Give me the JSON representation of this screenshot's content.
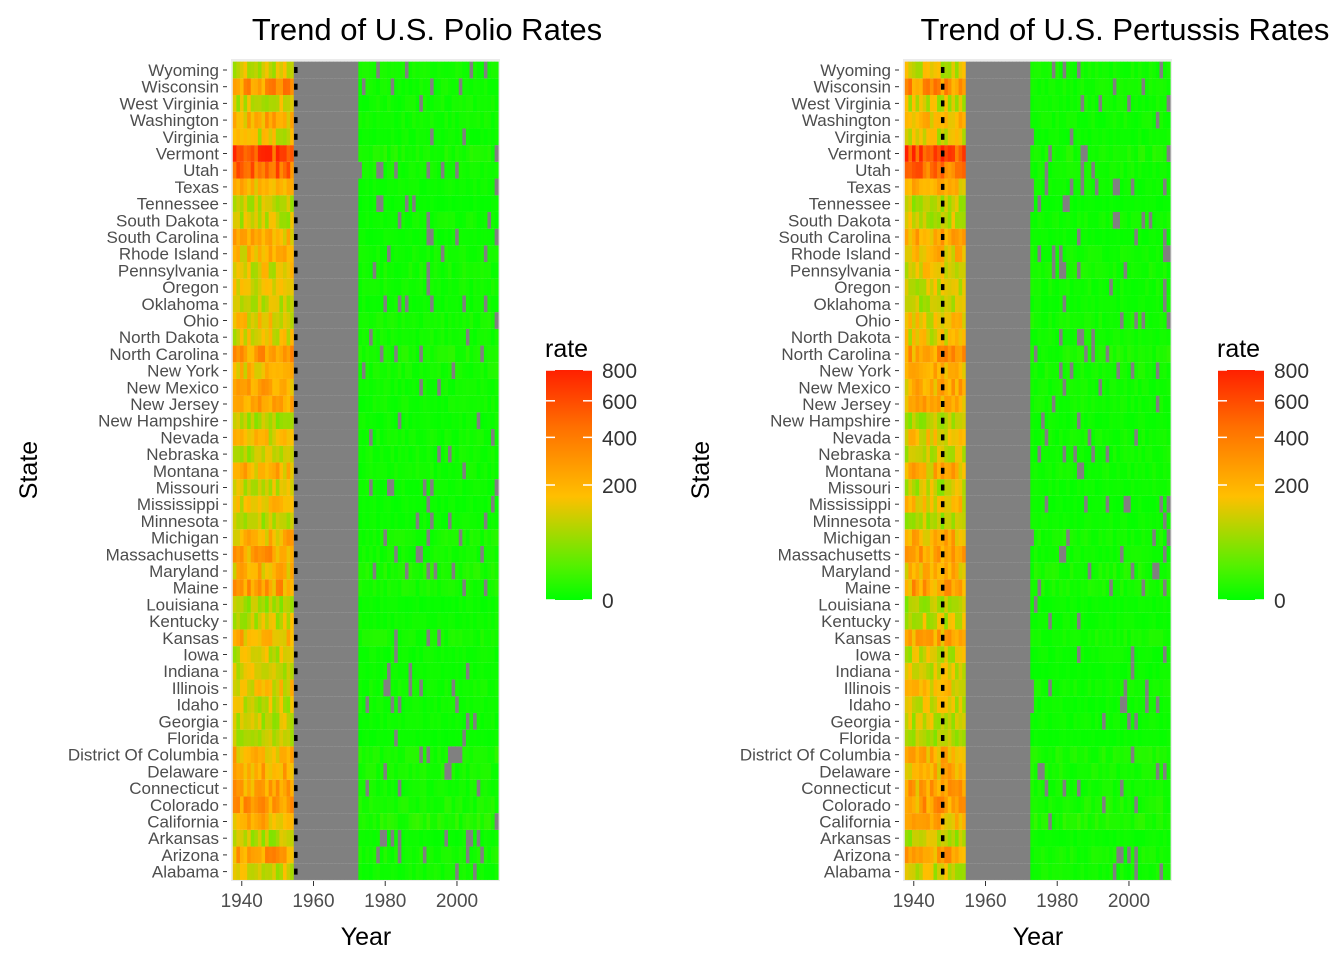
{
  "chart_data": [
    {
      "type": "heatmap",
      "title": "Trend of U.S. Polio Rates",
      "xlabel": "Year",
      "ylabel": "State",
      "x_ticks": [
        1940,
        1960,
        1980,
        2000
      ],
      "xlim": [
        1937,
        2012
      ],
      "missing_years": [
        1955,
        1973
      ],
      "vaccine_line_year": 1955,
      "legend_title": "rate",
      "legend_ticks": [
        0,
        200,
        400,
        600,
        800
      ],
      "rows": [
        "Alabama",
        "Arizona",
        "Arkansas",
        "California",
        "Colorado",
        "Connecticut",
        "Delaware",
        "District Of Columbia",
        "Florida",
        "Georgia",
        "Idaho",
        "Illinois",
        "Indiana",
        "Iowa",
        "Kansas",
        "Kentucky",
        "Louisiana",
        "Maine",
        "Maryland",
        "Massachusetts",
        "Michigan",
        "Minnesota",
        "Mississippi",
        "Missouri",
        "Montana",
        "Nebraska",
        "Nevada",
        "New Hampshire",
        "New Jersey",
        "New Mexico",
        "New York",
        "North Carolina",
        "North Dakota",
        "Ohio",
        "Oklahoma",
        "Oregon",
        "Pennsylvania",
        "Rhode Island",
        "South Carolina",
        "South Dakota",
        "Tennessee",
        "Texas",
        "Utah",
        "Vermont",
        "Virginia",
        "Washington",
        "West Virginia",
        "Wisconsin",
        "Wyoming"
      ],
      "row_levels": [
        150,
        300,
        130,
        250,
        300,
        280,
        260,
        250,
        120,
        140,
        150,
        200,
        160,
        150,
        270,
        150,
        120,
        300,
        240,
        290,
        250,
        130,
        200,
        140,
        250,
        140,
        200,
        120,
        270,
        260,
        240,
        310,
        180,
        200,
        140,
        160,
        180,
        230,
        260,
        150,
        130,
        250,
        500,
        620,
        170,
        260,
        150,
        350,
        160
      ],
      "post_levels": [
        8,
        10,
        5,
        15,
        12,
        8,
        10,
        12,
        4,
        6,
        6,
        8,
        5,
        6,
        10,
        6,
        5,
        10,
        12,
        8,
        10,
        6,
        5,
        6,
        8,
        8,
        8,
        6,
        8,
        8,
        10,
        12,
        8,
        10,
        6,
        8,
        10,
        8,
        5,
        8,
        4,
        6,
        8,
        12,
        6,
        8,
        8,
        8,
        8
      ]
    },
    {
      "type": "heatmap",
      "title": "Trend of U.S. Pertussis Rates",
      "xlabel": "Year",
      "ylabel": "State",
      "x_ticks": [
        1940,
        1960,
        1980,
        2000
      ],
      "xlim": [
        1937,
        2012
      ],
      "missing_years": [
        1955,
        1973
      ],
      "vaccine_line_year": 1948,
      "legend_title": "rate",
      "legend_ticks": [
        0,
        200,
        400,
        600,
        800
      ],
      "rows": [
        "Alabama",
        "Arizona",
        "Arkansas",
        "California",
        "Colorado",
        "Connecticut",
        "Delaware",
        "District Of Columbia",
        "Florida",
        "Georgia",
        "Idaho",
        "Illinois",
        "Indiana",
        "Iowa",
        "Kansas",
        "Kentucky",
        "Louisiana",
        "Maine",
        "Maryland",
        "Massachusetts",
        "Michigan",
        "Minnesota",
        "Mississippi",
        "Missouri",
        "Montana",
        "Nebraska",
        "Nevada",
        "New Hampshire",
        "New Jersey",
        "New Mexico",
        "New York",
        "North Carolina",
        "North Dakota",
        "Ohio",
        "Oklahoma",
        "Oregon",
        "Pennsylvania",
        "Rhode Island",
        "South Carolina",
        "South Dakota",
        "Tennessee",
        "Texas",
        "Utah",
        "Vermont",
        "Virginia",
        "Washington",
        "West Virginia",
        "Wisconsin",
        "Wyoming"
      ],
      "row_levels": [
        150,
        300,
        130,
        250,
        300,
        280,
        260,
        250,
        120,
        140,
        150,
        200,
        160,
        150,
        270,
        150,
        120,
        300,
        240,
        290,
        250,
        130,
        200,
        140,
        250,
        140,
        200,
        120,
        270,
        260,
        240,
        310,
        180,
        200,
        140,
        160,
        180,
        230,
        260,
        150,
        130,
        250,
        500,
        620,
        170,
        260,
        150,
        350,
        160
      ],
      "post_levels": [
        8,
        10,
        5,
        15,
        12,
        8,
        10,
        12,
        4,
        6,
        6,
        8,
        5,
        6,
        10,
        6,
        5,
        10,
        12,
        8,
        10,
        6,
        5,
        6,
        8,
        8,
        8,
        6,
        8,
        8,
        10,
        12,
        8,
        10,
        6,
        8,
        10,
        8,
        5,
        8,
        4,
        6,
        8,
        12,
        6,
        8,
        8,
        8,
        8
      ]
    }
  ],
  "colors": {
    "low": "#00ff00",
    "mid": "#ffbf00",
    "high": "#ff2000",
    "missing": "#808080",
    "panel_bg": "#ebebeb",
    "line": "#000000"
  }
}
